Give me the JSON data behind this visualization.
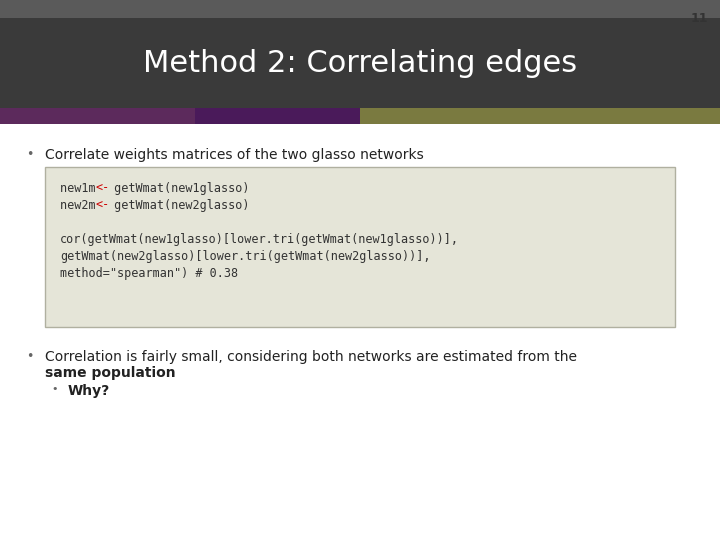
{
  "slide_number": "11",
  "title": "Method 2: Correlating edges",
  "title_bg_top_color": "#5a5a5a",
  "title_bg_main_color": "#3a3a3a",
  "title_text_color": "#ffffff",
  "slide_bg_color": "#ffffff",
  "bullet1": "Correlate weights matrices of the two glasso networks",
  "code_bg_color": "#e5e5d8",
  "code_border_color": "#b0b0a0",
  "code_lines": [
    "new1m <- getWmat(new1glasso)",
    "new2m <- getWmat(new2glasso)",
    "",
    "cor(getWmat(new1glasso)[lower.tri(getWmat(new1glasso))],",
    "getWmat(new2glasso)[lower.tri(getWmat(new2glasso))],",
    "method=\"spearman\") # 0.38"
  ],
  "code_arrow_color": "#cc0000",
  "bullet2_line1": "Correlation is fairly small, considering both networks are estimated from the",
  "bullet2_line2": "same population",
  "bullet3": "Why?",
  "body_text_color": "#222222",
  "bullet_color": "#666666",
  "accent_purple": "#5c2a5c",
  "accent_purple2": "#4a1a5a",
  "accent_olive": "#7a7a40"
}
